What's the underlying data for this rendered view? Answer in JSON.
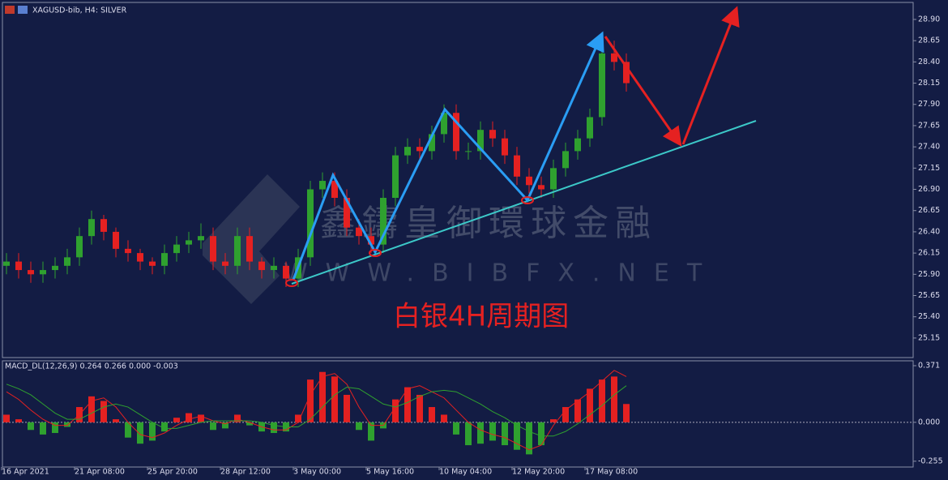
{
  "chart_data": [
    {
      "type": "candlestick",
      "title": "XAGUSD-bib, H4:  SILVER",
      "annotation": "白银4H周期图",
      "up_color": "#2fa12f",
      "down_color": "#e52121",
      "open": [
        26.0,
        26.05,
        25.95,
        25.9,
        25.95,
        26.0,
        26.1,
        26.35,
        26.55,
        26.4,
        26.2,
        26.15,
        26.05,
        26.0,
        26.15,
        26.25,
        26.3,
        26.35,
        26.05,
        26.0,
        26.35,
        26.05,
        25.95,
        26.0,
        25.85,
        26.1,
        26.9,
        27.0,
        26.8,
        26.45,
        26.35,
        26.25,
        26.8,
        27.3,
        27.4,
        27.35,
        27.55,
        27.8,
        27.35,
        27.35,
        27.6,
        27.5,
        27.3,
        27.05,
        26.95,
        26.9,
        27.15,
        27.35,
        27.5,
        27.75,
        28.5,
        28.4
      ],
      "high": [
        26.15,
        26.15,
        26.05,
        26.05,
        26.1,
        26.2,
        26.45,
        26.65,
        26.6,
        26.45,
        26.3,
        26.2,
        26.1,
        26.25,
        26.35,
        26.4,
        26.5,
        26.45,
        26.15,
        26.45,
        26.45,
        26.1,
        26.1,
        26.05,
        26.2,
        27.0,
        27.1,
        27.1,
        26.9,
        26.55,
        26.45,
        26.9,
        27.4,
        27.5,
        27.5,
        27.65,
        27.9,
        27.9,
        27.45,
        27.7,
        27.7,
        27.6,
        27.4,
        27.15,
        27.05,
        27.25,
        27.45,
        27.6,
        27.85,
        28.75,
        28.65,
        28.5
      ],
      "low": [
        25.9,
        25.85,
        25.8,
        25.8,
        25.85,
        25.9,
        26.0,
        26.25,
        26.3,
        26.1,
        26.05,
        25.95,
        25.9,
        25.9,
        26.05,
        26.15,
        26.2,
        25.95,
        25.9,
        25.9,
        25.95,
        25.85,
        25.85,
        25.75,
        25.75,
        26.0,
        26.8,
        26.7,
        26.35,
        26.25,
        26.15,
        26.15,
        26.7,
        27.2,
        27.25,
        27.25,
        27.45,
        27.25,
        27.25,
        27.25,
        27.4,
        27.2,
        26.95,
        26.85,
        26.8,
        26.8,
        27.05,
        27.25,
        27.4,
        27.65,
        28.3,
        28.05
      ],
      "close": [
        26.05,
        25.95,
        25.9,
        25.95,
        26.0,
        26.1,
        26.35,
        26.55,
        26.4,
        26.2,
        26.15,
        26.05,
        26.0,
        26.15,
        26.25,
        26.3,
        26.35,
        26.05,
        26.0,
        26.35,
        26.05,
        25.95,
        26.0,
        25.85,
        26.1,
        26.9,
        27.0,
        26.8,
        26.45,
        26.35,
        26.25,
        26.8,
        27.3,
        27.4,
        27.35,
        27.55,
        27.8,
        27.35,
        27.35,
        27.6,
        27.5,
        27.3,
        27.05,
        26.95,
        26.9,
        27.15,
        27.35,
        27.5,
        27.75,
        28.5,
        28.4,
        28.15
      ],
      "ylim": [
        24.92,
        29.1
      ],
      "yticks": [
        {
          "value": 25.15,
          "label": "25.15"
        },
        {
          "value": 25.4,
          "label": "25.40"
        },
        {
          "value": 25.65,
          "label": "25.65"
        },
        {
          "value": 25.9,
          "label": "25.90"
        },
        {
          "value": 26.15,
          "label": "26.15"
        },
        {
          "value": 26.4,
          "label": "26.40"
        },
        {
          "value": 26.65,
          "label": "26.65"
        },
        {
          "value": 26.9,
          "label": "26.90"
        },
        {
          "value": 27.15,
          "label": "27.15"
        },
        {
          "value": 27.4,
          "label": "27.40"
        },
        {
          "value": 27.65,
          "label": "27.65"
        },
        {
          "value": 27.9,
          "label": "27.90"
        },
        {
          "value": 28.15,
          "label": "28.15"
        },
        {
          "value": 28.4,
          "label": "28.40"
        },
        {
          "value": 28.65,
          "label": "28.65"
        },
        {
          "value": 28.9,
          "label": "28.90"
        }
      ]
    },
    {
      "type": "bar",
      "title": "MACD_DL(12,26,9) 0.264 0.266 0.000 -0.003",
      "up_color": "#e52121",
      "down_color": "#2fa12f",
      "categories": [
        "16 Apr 2021",
        null,
        null,
        null,
        null,
        null,
        "21 Apr 08:00",
        null,
        null,
        null,
        null,
        null,
        "25 Apr 20:00",
        null,
        null,
        null,
        null,
        null,
        "28 Apr 12:00",
        null,
        null,
        null,
        null,
        null,
        "3 May 00:00",
        null,
        null,
        null,
        null,
        null,
        "5 May 16:00",
        null,
        null,
        null,
        null,
        null,
        "10 May 04:00",
        null,
        null,
        null,
        null,
        null,
        "12 May 20:00",
        null,
        null,
        null,
        null,
        null,
        "17 May 08:00",
        null,
        null,
        null
      ],
      "values": [
        0.05,
        0.02,
        -0.05,
        -0.08,
        -0.07,
        -0.03,
        0.1,
        0.17,
        0.14,
        0.02,
        -0.1,
        -0.14,
        -0.12,
        -0.06,
        0.03,
        0.06,
        0.05,
        -0.05,
        -0.04,
        0.05,
        -0.02,
        -0.06,
        -0.07,
        -0.06,
        0.05,
        0.28,
        0.33,
        0.3,
        0.18,
        -0.05,
        -0.12,
        -0.04,
        0.15,
        0.23,
        0.18,
        0.1,
        0.05,
        -0.08,
        -0.15,
        -0.14,
        -0.12,
        -0.15,
        -0.18,
        -0.21,
        -0.15,
        0.02,
        0.1,
        0.15,
        0.22,
        0.28,
        0.3,
        0.12
      ],
      "lines": [
        {
          "color": "#e52121",
          "values": [
            0.2,
            0.15,
            0.08,
            0.02,
            -0.02,
            -0.02,
            0.05,
            0.14,
            0.16,
            0.1,
            0.0,
            -0.08,
            -0.1,
            -0.07,
            -0.02,
            0.02,
            0.04,
            0.01,
            -0.01,
            0.02,
            0.0,
            -0.03,
            -0.05,
            -0.05,
            0.0,
            0.18,
            0.3,
            0.32,
            0.25,
            0.1,
            -0.02,
            -0.02,
            0.1,
            0.22,
            0.24,
            0.2,
            0.16,
            0.08,
            0.0,
            -0.05,
            -0.08,
            -0.1,
            -0.14,
            -0.18,
            -0.15,
            -0.02,
            0.08,
            0.14,
            0.2,
            0.27,
            0.34,
            0.3
          ]
        },
        {
          "color": "#2fa12f",
          "values": [
            0.25,
            0.22,
            0.18,
            0.12,
            0.06,
            0.02,
            0.02,
            0.06,
            0.1,
            0.12,
            0.1,
            0.05,
            0.0,
            -0.04,
            -0.04,
            -0.02,
            0.0,
            0.01,
            0.01,
            0.01,
            0.01,
            0.0,
            -0.02,
            -0.03,
            -0.03,
            0.02,
            0.1,
            0.18,
            0.23,
            0.22,
            0.17,
            0.12,
            0.1,
            0.13,
            0.17,
            0.2,
            0.21,
            0.2,
            0.16,
            0.12,
            0.07,
            0.03,
            -0.02,
            -0.06,
            -0.09,
            -0.09,
            -0.06,
            -0.01,
            0.05,
            0.11,
            0.18,
            0.24
          ]
        }
      ],
      "ylim": [
        -0.293,
        0.403
      ],
      "yticks": [
        {
          "value": -0.255,
          "label": "-0.255"
        },
        {
          "value": 0,
          "label": "0.000"
        },
        {
          "value": 0.371,
          "label": "0.371"
        }
      ]
    }
  ],
  "watermark": {
    "name": "鑫鑄皇御環球金融",
    "url": "WWW.BIBFX.NET"
  }
}
